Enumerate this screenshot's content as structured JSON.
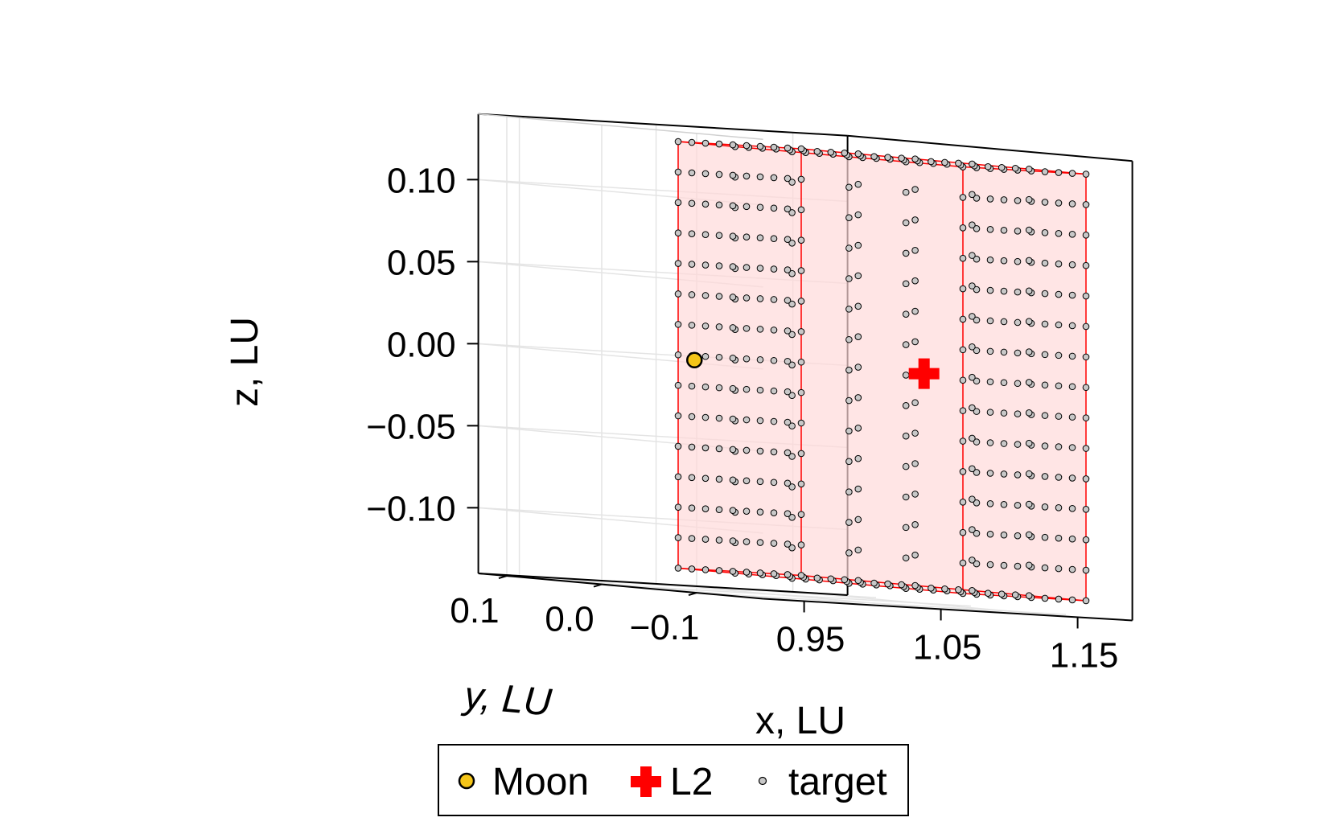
{
  "chart_data": {
    "type": "scatter3d",
    "title": "",
    "xlabel": "x, LU",
    "ylabel": "y, LU",
    "zlabel": "z, LU",
    "xlim": [
      0.92,
      1.19
    ],
    "ylim": [
      -0.17,
      0.13
    ],
    "zlim": [
      -0.14,
      0.14
    ],
    "xticks": [
      0.95,
      1.05,
      1.15
    ],
    "xtick_labels": [
      "0.95",
      "1.05",
      "1.15"
    ],
    "yticks": [
      0.1,
      0.0,
      -0.1
    ],
    "ytick_labels": [
      "0.1",
      "0.0",
      "−0.1"
    ],
    "zticks": [
      0.1,
      0.05,
      0.0,
      -0.05,
      -0.1
    ],
    "ztick_labels": [
      "0.10",
      "0.05",
      "0.00",
      "−0.05",
      "−0.10"
    ],
    "grid": true,
    "legend_position": "bottom",
    "series": [
      {
        "name": "Moon",
        "marker": "circle",
        "color": "#f5c518",
        "edge_color": "#000000",
        "points": [
          [
            0.9878,
            0.0,
            0.0
          ]
        ]
      },
      {
        "name": "L2",
        "marker": "cross",
        "color": "#ff0000",
        "points": [
          [
            1.1557,
            0.0,
            0.0
          ]
        ]
      },
      {
        "name": "target",
        "marker": "circle",
        "color": "#c8c8c8",
        "edge_color": "#000000",
        "grid": {
          "x": [
            1.08,
            1.17
          ],
          "y": [
            -0.15,
            0.15
          ],
          "z": [
            -0.13,
            0.13
          ],
          "nx": 10,
          "ny": 6,
          "nz": 15
        }
      }
    ],
    "target_box": {
      "x": [
        1.08,
        1.17
      ],
      "y": [
        -0.15,
        0.15
      ],
      "z": [
        -0.13,
        0.13
      ],
      "fill": "#ffd9d9",
      "edge": "#ff0000"
    }
  }
}
